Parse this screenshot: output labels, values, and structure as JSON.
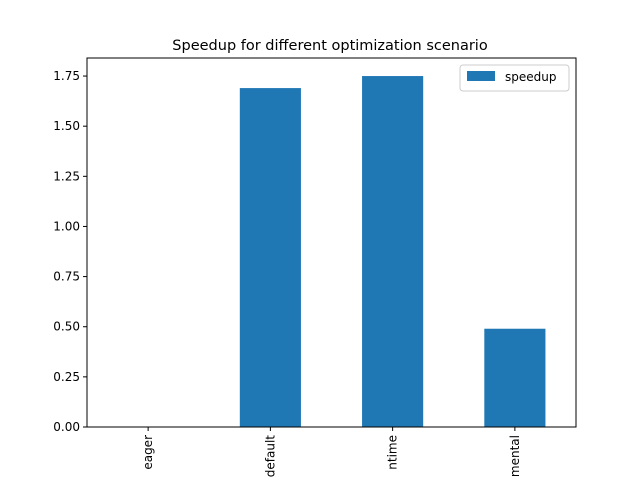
{
  "chart_data": {
    "type": "bar",
    "title": "Speedup for different optimization scenario",
    "xlabel": "",
    "ylabel": "",
    "categories": [
      "eager",
      "default",
      "ntime",
      "mental"
    ],
    "series": [
      {
        "name": "speedup",
        "values": [
          0.0,
          1.69,
          1.75,
          0.49
        ],
        "color": "#1f77b4"
      }
    ],
    "ylim": [
      0,
      1.84
    ],
    "yticks": [
      0.0,
      0.25,
      0.5,
      0.75,
      1.0,
      1.25,
      1.5,
      1.75
    ],
    "ytick_labels": [
      "0.00",
      "0.25",
      "0.50",
      "0.75",
      "1.00",
      "1.25",
      "1.50",
      "1.75"
    ],
    "xtick_rotation": "vertical",
    "legend": "top-right",
    "grid": false
  }
}
